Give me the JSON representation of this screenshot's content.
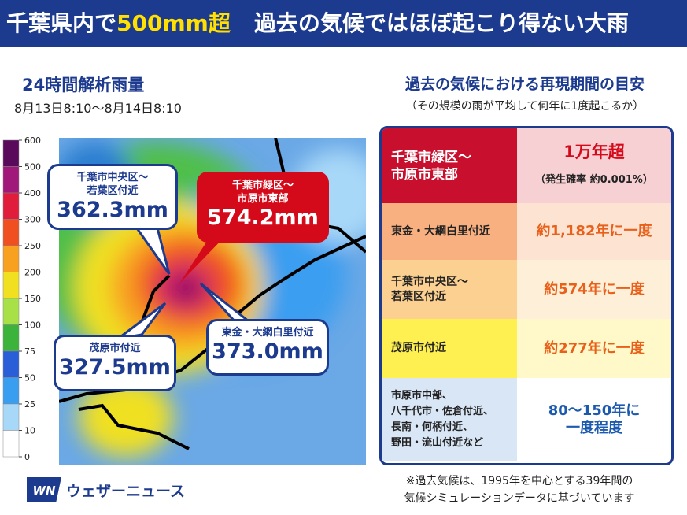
{
  "header": {
    "title_prefix": "千葉県内で",
    "title_highlight": "500mm超",
    "title_suffix": "過去の気候ではほぼ起こり得ない大雨"
  },
  "map": {
    "title": "24時間解析雨量",
    "period": "8月13日8:10〜8月14日8:10",
    "legend_ticks": [
      600,
      500,
      400,
      300,
      250,
      200,
      150,
      100,
      75,
      50,
      25,
      10,
      0
    ],
    "callouts": [
      {
        "place": "千葉市中央区〜\n若葉区付近",
        "amount": "362.3mm"
      },
      {
        "place": "千葉市緑区〜\n市原市東部",
        "amount": "574.2mm"
      },
      {
        "place": "東金・大網白里付近",
        "amount": "373.0mm"
      },
      {
        "place": "茂原市付近",
        "amount": "327.5mm"
      }
    ]
  },
  "table": {
    "title": "過去の気候における再現期間の目安",
    "subtitle": "（その規模の雨が平均して何年に1度起こるか）",
    "rows": [
      {
        "place": "千葉市緑区〜\n市原市東部",
        "period": "1万年超",
        "note": "（発生確率 約0.001%）"
      },
      {
        "place": "東金・大網白里付近",
        "period": "約1,182年に一度"
      },
      {
        "place": "千葉市中央区〜\n若葉区付近",
        "period": "約574年に一度"
      },
      {
        "place": "茂原市付近",
        "period": "約277年に一度"
      },
      {
        "place": "市原市中部、\n八千代市・佐倉付近、\n長南・何柄付近、\n野田・流山付近など",
        "period": "80〜150年に\n一度程度"
      }
    ]
  },
  "footer": {
    "logo": "ウェザーニュース",
    "note": "※過去気候は、1995年を中心とする39年間の\n気候シミュレーションデータに基づいています"
  }
}
